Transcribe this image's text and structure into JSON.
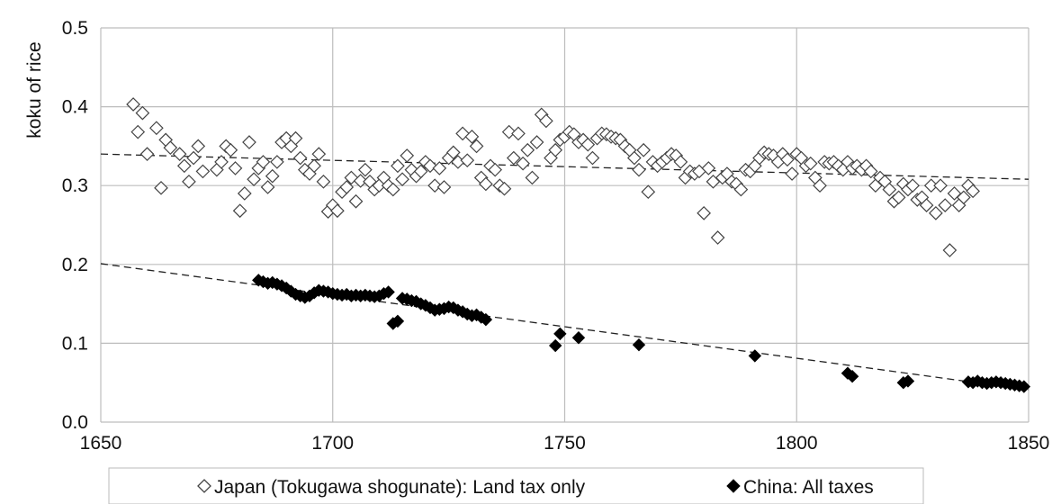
{
  "chart_data": {
    "type": "scatter",
    "title": "",
    "xlabel": "",
    "ylabel": "koku of rice",
    "xlim": [
      1650,
      1850
    ],
    "ylim": [
      0.0,
      0.5
    ],
    "xticks": [
      "1650",
      "1700",
      "1750",
      "1800",
      "1850"
    ],
    "yticks": [
      "0.0",
      "0.1",
      "0.2",
      "0.3",
      "0.4",
      "0.5"
    ],
    "grid": true,
    "legend_position": "bottom",
    "colors": {
      "japan_marker": "#ffffff",
      "japan_stroke": "#444444",
      "china_marker": "#000000",
      "grid": "#bdbdbd",
      "trend": "#222222"
    },
    "series": [
      {
        "name": "Japan (Tokugawa shogunate): Land tax only",
        "marker": "open-diamond",
        "points": [
          [
            1657,
            0.403
          ],
          [
            1658,
            0.368
          ],
          [
            1659,
            0.392
          ],
          [
            1660,
            0.34
          ],
          [
            1662,
            0.373
          ],
          [
            1663,
            0.297
          ],
          [
            1664,
            0.358
          ],
          [
            1665,
            0.348
          ],
          [
            1667,
            0.34
          ],
          [
            1668,
            0.325
          ],
          [
            1669,
            0.305
          ],
          [
            1670,
            0.335
          ],
          [
            1671,
            0.35
          ],
          [
            1672,
            0.318
          ],
          [
            1675,
            0.32
          ],
          [
            1676,
            0.33
          ],
          [
            1677,
            0.35
          ],
          [
            1678,
            0.345
          ],
          [
            1679,
            0.322
          ],
          [
            1680,
            0.268
          ],
          [
            1681,
            0.29
          ],
          [
            1682,
            0.355
          ],
          [
            1683,
            0.308
          ],
          [
            1684,
            0.322
          ],
          [
            1685,
            0.33
          ],
          [
            1686,
            0.298
          ],
          [
            1687,
            0.312
          ],
          [
            1688,
            0.33
          ],
          [
            1689,
            0.355
          ],
          [
            1690,
            0.36
          ],
          [
            1691,
            0.35
          ],
          [
            1692,
            0.36
          ],
          [
            1693,
            0.335
          ],
          [
            1694,
            0.32
          ],
          [
            1695,
            0.315
          ],
          [
            1696,
            0.325
          ],
          [
            1697,
            0.34
          ],
          [
            1698,
            0.305
          ],
          [
            1699,
            0.267
          ],
          [
            1700,
            0.275
          ],
          [
            1701,
            0.268
          ],
          [
            1702,
            0.292
          ],
          [
            1703,
            0.298
          ],
          [
            1704,
            0.31
          ],
          [
            1705,
            0.28
          ],
          [
            1706,
            0.306
          ],
          [
            1707,
            0.32
          ],
          [
            1708,
            0.305
          ],
          [
            1709,
            0.295
          ],
          [
            1710,
            0.3
          ],
          [
            1711,
            0.31
          ],
          [
            1712,
            0.3
          ],
          [
            1713,
            0.295
          ],
          [
            1714,
            0.325
          ],
          [
            1715,
            0.308
          ],
          [
            1716,
            0.338
          ],
          [
            1717,
            0.32
          ],
          [
            1718,
            0.312
          ],
          [
            1719,
            0.318
          ],
          [
            1720,
            0.33
          ],
          [
            1721,
            0.325
          ],
          [
            1722,
            0.3
          ],
          [
            1723,
            0.322
          ],
          [
            1724,
            0.298
          ],
          [
            1725,
            0.335
          ],
          [
            1726,
            0.342
          ],
          [
            1727,
            0.33
          ],
          [
            1728,
            0.366
          ],
          [
            1729,
            0.332
          ],
          [
            1730,
            0.362
          ],
          [
            1731,
            0.35
          ],
          [
            1732,
            0.31
          ],
          [
            1733,
            0.302
          ],
          [
            1734,
            0.325
          ],
          [
            1735,
            0.32
          ],
          [
            1736,
            0.3
          ],
          [
            1737,
            0.296
          ],
          [
            1738,
            0.368
          ],
          [
            1739,
            0.335
          ],
          [
            1740,
            0.366
          ],
          [
            1741,
            0.328
          ],
          [
            1742,
            0.345
          ],
          [
            1743,
            0.31
          ],
          [
            1744,
            0.355
          ],
          [
            1745,
            0.39
          ],
          [
            1746,
            0.382
          ],
          [
            1747,
            0.335
          ],
          [
            1748,
            0.345
          ],
          [
            1749,
            0.358
          ],
          [
            1750,
            0.362
          ],
          [
            1751,
            0.368
          ],
          [
            1752,
            0.365
          ],
          [
            1753,
            0.355
          ],
          [
            1754,
            0.358
          ],
          [
            1755,
            0.352
          ],
          [
            1756,
            0.335
          ],
          [
            1757,
            0.36
          ],
          [
            1758,
            0.366
          ],
          [
            1759,
            0.365
          ],
          [
            1760,
            0.362
          ],
          [
            1761,
            0.36
          ],
          [
            1762,
            0.358
          ],
          [
            1763,
            0.35
          ],
          [
            1764,
            0.345
          ],
          [
            1765,
            0.335
          ],
          [
            1766,
            0.32
          ],
          [
            1767,
            0.345
          ],
          [
            1768,
            0.292
          ],
          [
            1769,
            0.33
          ],
          [
            1770,
            0.325
          ],
          [
            1771,
            0.33
          ],
          [
            1772,
            0.335
          ],
          [
            1773,
            0.34
          ],
          [
            1774,
            0.338
          ],
          [
            1775,
            0.33
          ],
          [
            1776,
            0.31
          ],
          [
            1777,
            0.318
          ],
          [
            1778,
            0.315
          ],
          [
            1779,
            0.318
          ],
          [
            1780,
            0.265
          ],
          [
            1781,
            0.322
          ],
          [
            1782,
            0.305
          ],
          [
            1783,
            0.234
          ],
          [
            1784,
            0.31
          ],
          [
            1785,
            0.315
          ],
          [
            1786,
            0.305
          ],
          [
            1787,
            0.302
          ],
          [
            1788,
            0.295
          ],
          [
            1789,
            0.32
          ],
          [
            1790,
            0.318
          ],
          [
            1791,
            0.325
          ],
          [
            1792,
            0.335
          ],
          [
            1793,
            0.342
          ],
          [
            1794,
            0.34
          ],
          [
            1795,
            0.338
          ],
          [
            1796,
            0.33
          ],
          [
            1797,
            0.34
          ],
          [
            1798,
            0.333
          ],
          [
            1799,
            0.315
          ],
          [
            1800,
            0.34
          ],
          [
            1801,
            0.335
          ],
          [
            1802,
            0.325
          ],
          [
            1803,
            0.328
          ],
          [
            1804,
            0.31
          ],
          [
            1805,
            0.3
          ],
          [
            1806,
            0.33
          ],
          [
            1807,
            0.328
          ],
          [
            1808,
            0.33
          ],
          [
            1809,
            0.325
          ],
          [
            1810,
            0.32
          ],
          [
            1811,
            0.33
          ],
          [
            1812,
            0.322
          ],
          [
            1813,
            0.325
          ],
          [
            1814,
            0.32
          ],
          [
            1815,
            0.325
          ],
          [
            1816,
            0.318
          ],
          [
            1817,
            0.3
          ],
          [
            1818,
            0.31
          ],
          [
            1819,
            0.305
          ],
          [
            1820,
            0.295
          ],
          [
            1821,
            0.28
          ],
          [
            1822,
            0.285
          ],
          [
            1823,
            0.302
          ],
          [
            1824,
            0.295
          ],
          [
            1825,
            0.3
          ],
          [
            1826,
            0.282
          ],
          [
            1827,
            0.285
          ],
          [
            1828,
            0.275
          ],
          [
            1829,
            0.3
          ],
          [
            1830,
            0.265
          ],
          [
            1831,
            0.3
          ],
          [
            1832,
            0.275
          ],
          [
            1833,
            0.218
          ],
          [
            1834,
            0.29
          ],
          [
            1835,
            0.275
          ],
          [
            1836,
            0.285
          ],
          [
            1837,
            0.3
          ],
          [
            1838,
            0.293
          ]
        ]
      },
      {
        "name": "China: All taxes",
        "marker": "filled-diamond",
        "points": [
          [
            1684,
            0.18
          ],
          [
            1685,
            0.178
          ],
          [
            1686,
            0.176
          ],
          [
            1687,
            0.177
          ],
          [
            1688,
            0.175
          ],
          [
            1689,
            0.173
          ],
          [
            1690,
            0.17
          ],
          [
            1691,
            0.166
          ],
          [
            1692,
            0.162
          ],
          [
            1693,
            0.16
          ],
          [
            1694,
            0.158
          ],
          [
            1695,
            0.16
          ],
          [
            1696,
            0.164
          ],
          [
            1697,
            0.167
          ],
          [
            1698,
            0.166
          ],
          [
            1699,
            0.165
          ],
          [
            1700,
            0.163
          ],
          [
            1701,
            0.162
          ],
          [
            1702,
            0.161
          ],
          [
            1703,
            0.162
          ],
          [
            1704,
            0.16
          ],
          [
            1705,
            0.161
          ],
          [
            1706,
            0.16
          ],
          [
            1707,
            0.161
          ],
          [
            1708,
            0.16
          ],
          [
            1709,
            0.159
          ],
          [
            1710,
            0.16
          ],
          [
            1711,
            0.163
          ],
          [
            1712,
            0.165
          ],
          [
            1713,
            0.125
          ],
          [
            1714,
            0.128
          ],
          [
            1715,
            0.157
          ],
          [
            1716,
            0.156
          ],
          [
            1717,
            0.154
          ],
          [
            1718,
            0.153
          ],
          [
            1719,
            0.15
          ],
          [
            1720,
            0.148
          ],
          [
            1721,
            0.145
          ],
          [
            1722,
            0.142
          ],
          [
            1723,
            0.143
          ],
          [
            1724,
            0.144
          ],
          [
            1725,
            0.146
          ],
          [
            1726,
            0.145
          ],
          [
            1727,
            0.142
          ],
          [
            1728,
            0.14
          ],
          [
            1729,
            0.137
          ],
          [
            1730,
            0.135
          ],
          [
            1731,
            0.136
          ],
          [
            1732,
            0.133
          ],
          [
            1733,
            0.13
          ],
          [
            1748,
            0.097
          ],
          [
            1749,
            0.112
          ],
          [
            1753,
            0.107
          ],
          [
            1766,
            0.098
          ],
          [
            1791,
            0.084
          ],
          [
            1811,
            0.062
          ],
          [
            1812,
            0.058
          ],
          [
            1823,
            0.05
          ],
          [
            1824,
            0.052
          ],
          [
            1837,
            0.051
          ],
          [
            1838,
            0.05
          ],
          [
            1839,
            0.052
          ],
          [
            1840,
            0.05
          ],
          [
            1841,
            0.049
          ],
          [
            1842,
            0.05
          ],
          [
            1843,
            0.051
          ],
          [
            1844,
            0.05
          ],
          [
            1845,
            0.049
          ],
          [
            1846,
            0.048
          ],
          [
            1847,
            0.047
          ],
          [
            1848,
            0.046
          ],
          [
            1849,
            0.045
          ]
        ]
      }
    ],
    "trendlines": [
      {
        "series": "Japan (Tokugawa shogunate): Land tax only",
        "x": [
          1650,
          1850
        ],
        "y": [
          0.34,
          0.308
        ]
      },
      {
        "series": "China: All taxes",
        "x": [
          1650,
          1850
        ],
        "y": [
          0.201,
          0.041
        ]
      }
    ]
  }
}
